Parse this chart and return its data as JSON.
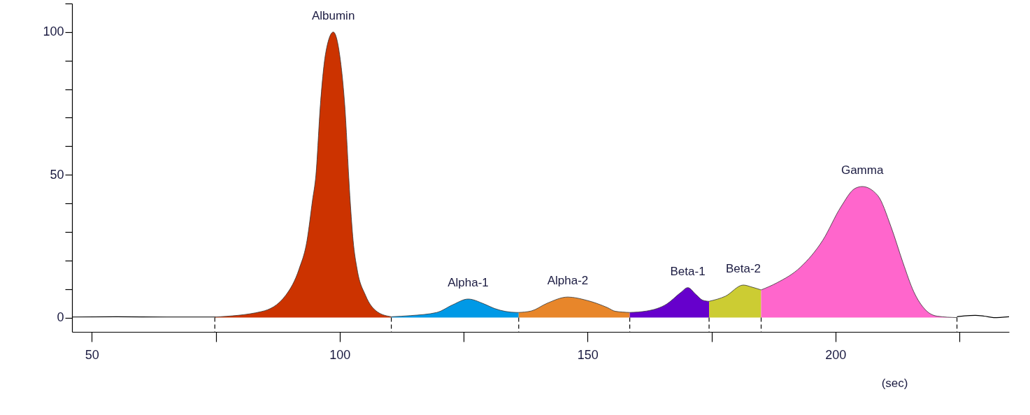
{
  "chart_data": {
    "type": "area",
    "xlabel": "(sec)",
    "xlim": [
      46,
      235
    ],
    "ylim": [
      -5,
      110
    ],
    "xticks": [
      50,
      {
        "value": 75,
        "label": null
      },
      100,
      {
        "value": 125,
        "label": null
      },
      150,
      {
        "value": 175,
        "label": null
      },
      200,
      {
        "value": 225,
        "label": null
      }
    ],
    "yticks": [
      0,
      {
        "value": 10,
        "label": null
      },
      {
        "value": 20,
        "label": null
      },
      {
        "value": 30,
        "label": null
      },
      {
        "value": 40,
        "label": null
      },
      50,
      {
        "value": 60,
        "label": null
      },
      {
        "value": 70,
        "label": null
      },
      {
        "value": 80,
        "label": null
      },
      {
        "value": 90,
        "label": null
      },
      100,
      {
        "value": 110,
        "label": null
      }
    ],
    "grid": false,
    "series": [
      {
        "type": "line",
        "color": "#000000",
        "x": [
          46,
          55,
          65,
          75
        ],
        "values": [
          0.2,
          0.3,
          0.2,
          0.2
        ]
      },
      {
        "name": "Albumin",
        "color": "#cc3300",
        "x": [
          74.8,
          84.2,
          89.1,
          91.8,
          93.4,
          94.5,
          95.2,
          96.1,
          97.2,
          98.7,
          99.9,
          101,
          102.1,
          102.7,
          103.5,
          105.2,
          107.6,
          110.4
        ],
        "values": [
          0.2,
          2.1,
          7.8,
          17,
          27,
          41,
          50,
          74.6,
          93,
          100,
          93,
          74.6,
          41,
          27,
          17,
          7.8,
          2,
          0.3
        ]
      },
      {
        "name": "Alpha-1",
        "color": "#0099e6",
        "x": [
          110.4,
          114.3,
          119.6,
          122.8,
          125.9,
          129.1,
          131.2,
          135.7,
          136.1
        ],
        "values": [
          0.3,
          0.7,
          1.8,
          4.5,
          6.5,
          4.8,
          3.2,
          1.8,
          1.8
        ]
      },
      {
        "name": "Alpha-2",
        "color": "#e8862a",
        "x": [
          136.1,
          138.6,
          141.8,
          146,
          149.7,
          154,
          155.6,
          158.5
        ],
        "values": [
          1.8,
          2.3,
          5,
          7.2,
          6.1,
          3.5,
          2.2,
          1.8
        ]
      },
      {
        "name": "Beta-1",
        "color": "#6600cc",
        "x": [
          158.5,
          161.9,
          166,
          168.8,
          170.2,
          171.9,
          173.2,
          174.5
        ],
        "values": [
          1.8,
          2.3,
          4.8,
          8.8,
          10.5,
          8,
          6.1,
          5.7
        ]
      },
      {
        "name": "Beta-2",
        "color": "#cccc33",
        "x": [
          174.5,
          177.8,
          181.4,
          183.1,
          185
        ],
        "values": [
          5.7,
          7.5,
          11.4,
          10.7,
          9.7
        ]
      },
      {
        "name": "Gamma",
        "color": "#ff66cc",
        "x": [
          185,
          188.2,
          192.9,
          197.4,
          201.1,
          203.9,
          205.4,
          208.5,
          211.2,
          213.6,
          215.8,
          218.1,
          220.5,
          224.5
        ],
        "values": [
          9.7,
          12.2,
          17.6,
          27,
          38.8,
          45.2,
          45.9,
          42.8,
          31.8,
          19.3,
          9,
          2.8,
          0.5,
          0
        ]
      },
      {
        "type": "line",
        "color": "#000000",
        "x": [
          224.5,
          226,
          228.2,
          230,
          231.9,
          235
        ],
        "values": [
          0.3,
          0.6,
          0.8,
          0.5,
          0,
          0.3
        ]
      }
    ]
  }
}
